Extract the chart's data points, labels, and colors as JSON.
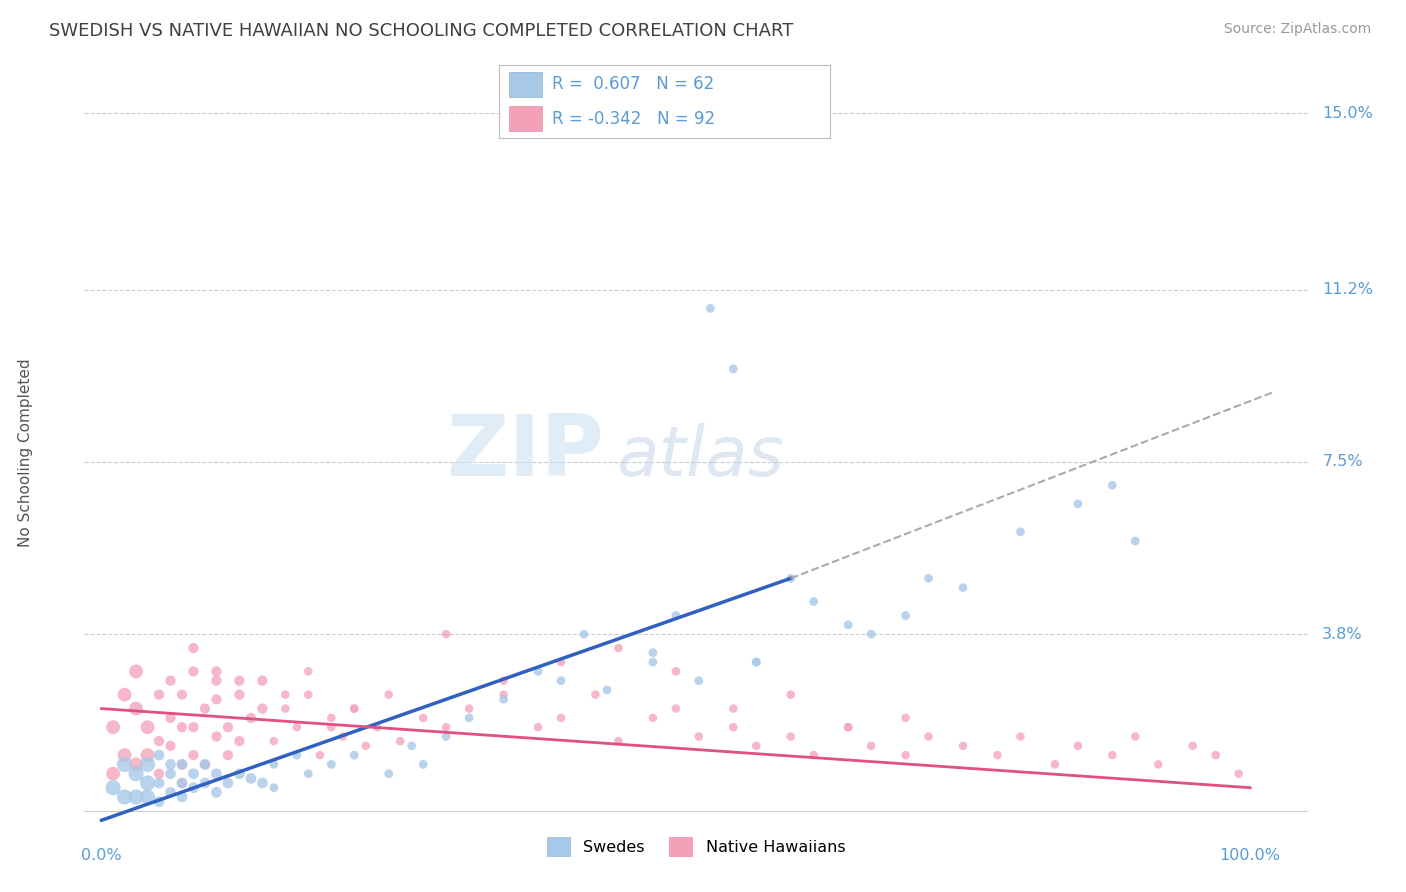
{
  "title": "SWEDISH VS NATIVE HAWAIIAN NO SCHOOLING COMPLETED CORRELATION CHART",
  "source": "Source: ZipAtlas.com",
  "ylabel": "No Schooling Completed",
  "r1": 0.607,
  "n1": 62,
  "r2": -0.342,
  "n2": 92,
  "color1": "#a8c8e8",
  "color2": "#f4a0b8",
  "line_color1": "#3060c0",
  "line_color2": "#e05080",
  "dashed_color": "#aaaaaa",
  "yticks": [
    0.0,
    0.038,
    0.075,
    0.112,
    0.15
  ],
  "ytick_labels": [
    "",
    "3.8%",
    "7.5%",
    "11.2%",
    "15.0%"
  ],
  "xlim": [
    -0.015,
    1.05
  ],
  "ylim": [
    -0.004,
    0.158
  ],
  "watermark_zip": "ZIP",
  "watermark_atlas": "atlas",
  "background_color": "#ffffff",
  "grid_color": "#cccccc",
  "title_color": "#404040",
  "axis_color": "#5b9bd5",
  "source_color": "#999999",
  "legend_label1": "Swedes",
  "legend_label2": "Native Hawaiians",
  "blue_trend_x0": 0.0,
  "blue_trend_y0": -0.002,
  "blue_trend_x1": 0.6,
  "blue_trend_y1": 0.05,
  "dash_trend_x0": 0.6,
  "dash_trend_y0": 0.05,
  "dash_trend_x1": 1.02,
  "dash_trend_y1": 0.09,
  "pink_trend_x0": 0.0,
  "pink_trend_y0": 0.022,
  "pink_trend_x1": 1.0,
  "pink_trend_y1": 0.005,
  "swedes_x": [
    0.01,
    0.02,
    0.02,
    0.03,
    0.03,
    0.04,
    0.04,
    0.04,
    0.05,
    0.05,
    0.05,
    0.06,
    0.06,
    0.06,
    0.07,
    0.07,
    0.07,
    0.08,
    0.08,
    0.09,
    0.09,
    0.1,
    0.1,
    0.11,
    0.12,
    0.13,
    0.14,
    0.15,
    0.15,
    0.17,
    0.18,
    0.2,
    0.22,
    0.25,
    0.27,
    0.28,
    0.3,
    0.32,
    0.35,
    0.38,
    0.4,
    0.42,
    0.44,
    0.48,
    0.5,
    0.53,
    0.55,
    0.57,
    0.6,
    0.65,
    0.7,
    0.75,
    0.8,
    0.85,
    0.88,
    0.9,
    0.48,
    0.52,
    0.57,
    0.62,
    0.67,
    0.72
  ],
  "swedes_y": [
    0.005,
    0.01,
    0.003,
    0.008,
    0.003,
    0.006,
    0.01,
    0.003,
    0.012,
    0.006,
    0.002,
    0.008,
    0.004,
    0.01,
    0.006,
    0.003,
    0.01,
    0.005,
    0.008,
    0.006,
    0.01,
    0.004,
    0.008,
    0.006,
    0.008,
    0.007,
    0.006,
    0.01,
    0.005,
    0.012,
    0.008,
    0.01,
    0.012,
    0.008,
    0.014,
    0.01,
    0.016,
    0.02,
    0.024,
    0.03,
    0.028,
    0.038,
    0.026,
    0.032,
    0.042,
    0.108,
    0.095,
    0.032,
    0.05,
    0.04,
    0.042,
    0.048,
    0.06,
    0.066,
    0.07,
    0.058,
    0.034,
    0.028,
    0.032,
    0.045,
    0.038,
    0.05
  ],
  "native_x": [
    0.01,
    0.01,
    0.02,
    0.02,
    0.03,
    0.03,
    0.03,
    0.04,
    0.04,
    0.05,
    0.05,
    0.06,
    0.06,
    0.06,
    0.07,
    0.07,
    0.07,
    0.08,
    0.08,
    0.08,
    0.09,
    0.09,
    0.1,
    0.1,
    0.1,
    0.11,
    0.11,
    0.12,
    0.12,
    0.13,
    0.14,
    0.15,
    0.16,
    0.17,
    0.18,
    0.19,
    0.2,
    0.21,
    0.22,
    0.23,
    0.24,
    0.25,
    0.26,
    0.28,
    0.3,
    0.32,
    0.35,
    0.38,
    0.4,
    0.43,
    0.45,
    0.48,
    0.5,
    0.52,
    0.55,
    0.57,
    0.6,
    0.62,
    0.65,
    0.67,
    0.7,
    0.72,
    0.75,
    0.78,
    0.8,
    0.83,
    0.85,
    0.88,
    0.9,
    0.92,
    0.95,
    0.97,
    0.99,
    0.3,
    0.35,
    0.4,
    0.45,
    0.5,
    0.55,
    0.6,
    0.65,
    0.7,
    0.08,
    0.1,
    0.12,
    0.14,
    0.16,
    0.18,
    0.2,
    0.22,
    0.05,
    0.07
  ],
  "native_y": [
    0.018,
    0.008,
    0.025,
    0.012,
    0.022,
    0.01,
    0.03,
    0.018,
    0.012,
    0.025,
    0.008,
    0.02,
    0.014,
    0.028,
    0.018,
    0.01,
    0.025,
    0.03,
    0.018,
    0.012,
    0.022,
    0.01,
    0.028,
    0.016,
    0.024,
    0.018,
    0.012,
    0.025,
    0.015,
    0.02,
    0.028,
    0.015,
    0.022,
    0.018,
    0.025,
    0.012,
    0.02,
    0.016,
    0.022,
    0.014,
    0.018,
    0.025,
    0.015,
    0.02,
    0.018,
    0.022,
    0.025,
    0.018,
    0.02,
    0.025,
    0.015,
    0.02,
    0.022,
    0.016,
    0.018,
    0.014,
    0.016,
    0.012,
    0.018,
    0.014,
    0.012,
    0.016,
    0.014,
    0.012,
    0.016,
    0.01,
    0.014,
    0.012,
    0.016,
    0.01,
    0.014,
    0.012,
    0.008,
    0.038,
    0.028,
    0.032,
    0.035,
    0.03,
    0.022,
    0.025,
    0.018,
    0.02,
    0.035,
    0.03,
    0.028,
    0.022,
    0.025,
    0.03,
    0.018,
    0.022,
    0.015,
    0.006
  ]
}
